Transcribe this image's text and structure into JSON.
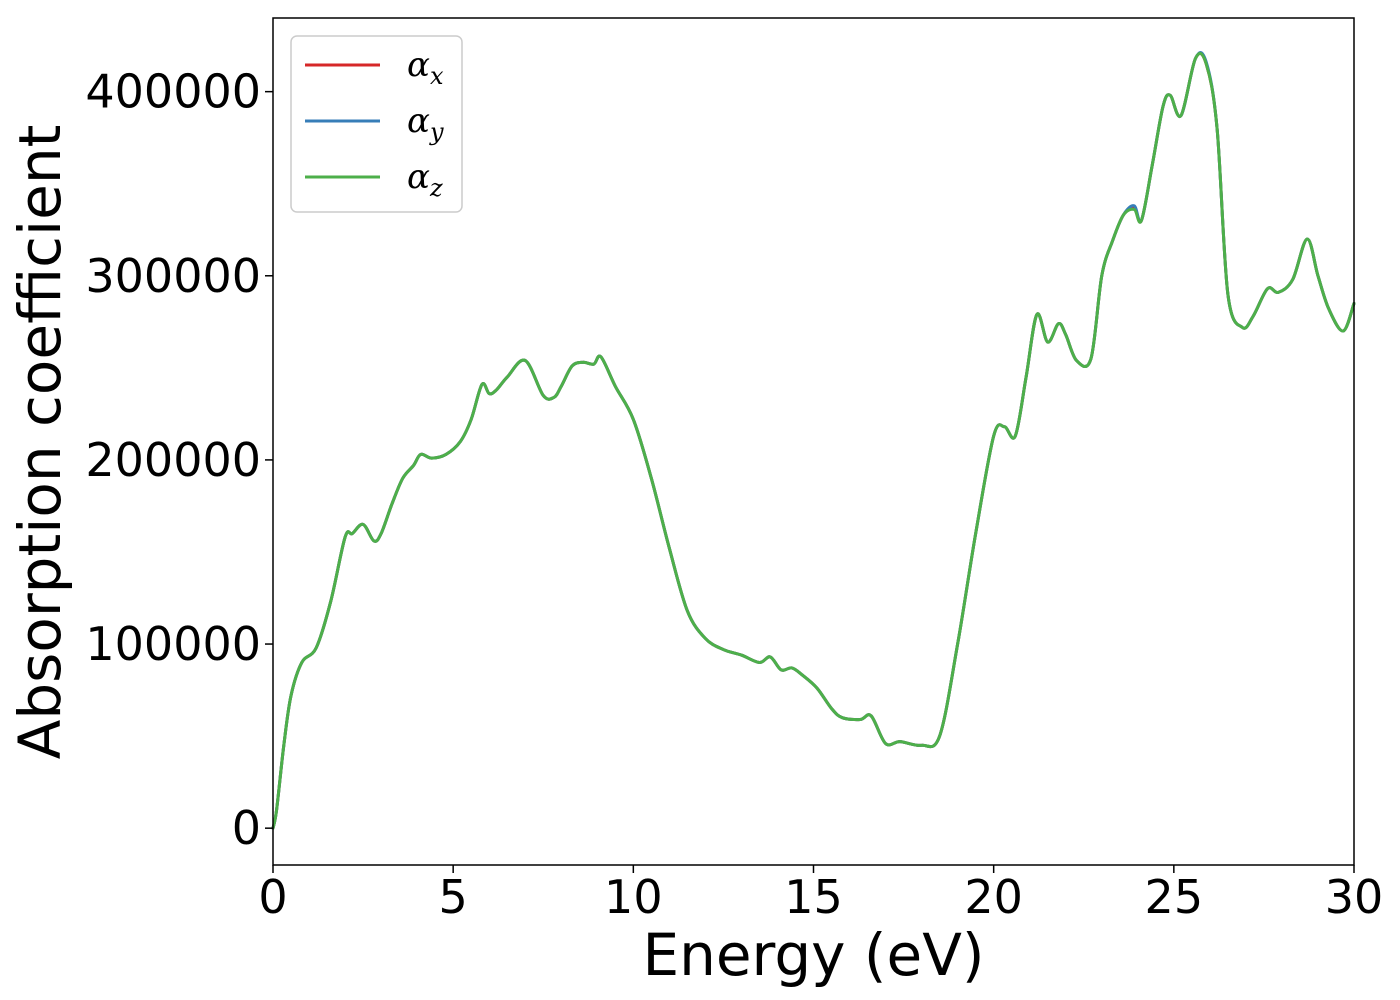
{
  "chart_data": {
    "type": "line",
    "title": "",
    "xlabel": "Energy (eV)",
    "ylabel": "Absorption coefficient",
    "xlim": [
      0,
      30
    ],
    "ylim": [
      -20000,
      440000
    ],
    "xticks": [
      0,
      5,
      10,
      15,
      20,
      25,
      30
    ],
    "xtick_labels": [
      "0",
      "5",
      "10",
      "15",
      "20",
      "25",
      "30"
    ],
    "yticks": [
      0,
      100000,
      200000,
      300000,
      400000
    ],
    "ytick_labels": [
      "0",
      "100000",
      "200000",
      "300000",
      "400000"
    ],
    "grid": false,
    "legend_position": "top-left",
    "series": [
      {
        "name": "αx",
        "symbol": "α",
        "subscript": "x",
        "color": "#d62728",
        "x": [
          0,
          0.1,
          0.3,
          0.5,
          0.8,
          1.2,
          1.6,
          2.0,
          2.2,
          2.5,
          2.8,
          3.0,
          3.3,
          3.6,
          3.9,
          4.1,
          4.4,
          4.8,
          5.2,
          5.5,
          5.8,
          6.0,
          6.2,
          6.5,
          7.0,
          7.5,
          7.8,
          8.0,
          8.3,
          8.6,
          8.9,
          9.1,
          9.5,
          10.0,
          10.5,
          11.0,
          11.5,
          12.0,
          12.5,
          13.0,
          13.5,
          13.8,
          14.1,
          14.4,
          14.7,
          15.1,
          15.5,
          15.8,
          16.3,
          16.6,
          17.0,
          17.4,
          18.0,
          18.5,
          19.0,
          19.5,
          20.0,
          20.3,
          20.6,
          20.9,
          21.2,
          21.5,
          21.8,
          22.0,
          22.3,
          22.7,
          23.0,
          23.3,
          23.6,
          23.9,
          24.1,
          24.4,
          24.7,
          24.9,
          25.2,
          25.6,
          25.9,
          26.2,
          26.5,
          26.9,
          27.2,
          27.6,
          27.9,
          28.3,
          28.7,
          29.0,
          29.3,
          29.7,
          30.0
        ],
        "y": [
          0,
          10000,
          45000,
          72000,
          90000,
          98000,
          123000,
          158000,
          160000,
          165000,
          156000,
          160000,
          176000,
          190000,
          197000,
          203000,
          201000,
          203000,
          210000,
          222000,
          241000,
          236000,
          238000,
          245000,
          254000,
          235000,
          234000,
          240000,
          251000,
          253000,
          252000,
          256000,
          240000,
          222000,
          190000,
          152000,
          118000,
          103000,
          97000,
          94000,
          90000,
          93000,
          86000,
          87000,
          83000,
          76000,
          65000,
          60000,
          59000,
          61000,
          46000,
          47000,
          45000,
          50000,
          100000,
          160000,
          213000,
          218000,
          213000,
          245000,
          279000,
          264000,
          274000,
          268000,
          254000,
          255000,
          300000,
          319000,
          333000,
          337000,
          330000,
          360000,
          392000,
          398000,
          387000,
          418000,
          415000,
          380000,
          290000,
          272000,
          278000,
          293000,
          291000,
          298000,
          320000,
          300000,
          282000,
          270000,
          285000
        ]
      },
      {
        "name": "αy",
        "symbol": "α",
        "subscript": "y",
        "color": "#377eb8",
        "x": [
          0,
          0.1,
          0.3,
          0.5,
          0.8,
          1.2,
          1.6,
          2.0,
          2.2,
          2.5,
          2.8,
          3.0,
          3.3,
          3.6,
          3.9,
          4.1,
          4.4,
          4.8,
          5.2,
          5.5,
          5.8,
          6.0,
          6.2,
          6.5,
          7.0,
          7.5,
          7.8,
          8.0,
          8.3,
          8.6,
          8.9,
          9.1,
          9.5,
          10.0,
          10.5,
          11.0,
          11.5,
          12.0,
          12.5,
          13.0,
          13.5,
          13.8,
          14.1,
          14.4,
          14.7,
          15.1,
          15.5,
          15.8,
          16.3,
          16.6,
          17.0,
          17.4,
          18.0,
          18.5,
          19.0,
          19.5,
          20.0,
          20.3,
          20.6,
          20.9,
          21.2,
          21.5,
          21.8,
          22.0,
          22.3,
          22.7,
          23.0,
          23.3,
          23.6,
          23.9,
          24.1,
          24.4,
          24.7,
          24.9,
          25.2,
          25.6,
          25.9,
          26.2,
          26.5,
          26.9,
          27.2,
          27.6,
          27.9,
          28.3,
          28.7,
          29.0,
          29.3,
          29.7,
          30.0
        ],
        "y": [
          0,
          10000,
          45000,
          72000,
          90000,
          98000,
          123000,
          158000,
          160000,
          165000,
          156000,
          160000,
          176000,
          190000,
          197000,
          203000,
          201000,
          203000,
          210000,
          222000,
          241000,
          236000,
          238000,
          245000,
          254000,
          235000,
          234000,
          240000,
          251000,
          253000,
          252000,
          256000,
          240000,
          222000,
          190000,
          152000,
          118000,
          103000,
          97000,
          94000,
          90000,
          93000,
          86000,
          87000,
          83000,
          76000,
          65000,
          60000,
          59000,
          61000,
          46000,
          47000,
          45000,
          50000,
          100000,
          160000,
          213000,
          218000,
          213000,
          245000,
          279000,
          264000,
          274000,
          268000,
          254000,
          255000,
          300000,
          319000,
          333000,
          338000,
          330000,
          360000,
          392000,
          398000,
          387000,
          418000,
          416000,
          380000,
          290000,
          272000,
          278000,
          293000,
          291000,
          298000,
          320000,
          300000,
          282000,
          270000,
          285000
        ]
      },
      {
        "name": "αz",
        "symbol": "α",
        "subscript": "z",
        "color": "#4daf4a",
        "x": [
          0,
          0.1,
          0.3,
          0.5,
          0.8,
          1.2,
          1.6,
          2.0,
          2.2,
          2.5,
          2.8,
          3.0,
          3.3,
          3.6,
          3.9,
          4.1,
          4.4,
          4.8,
          5.2,
          5.5,
          5.8,
          6.0,
          6.2,
          6.5,
          7.0,
          7.5,
          7.8,
          8.0,
          8.3,
          8.6,
          8.9,
          9.1,
          9.5,
          10.0,
          10.5,
          11.0,
          11.5,
          12.0,
          12.5,
          13.0,
          13.5,
          13.8,
          14.1,
          14.4,
          14.7,
          15.1,
          15.5,
          15.8,
          16.3,
          16.6,
          17.0,
          17.4,
          18.0,
          18.5,
          19.0,
          19.5,
          20.0,
          20.3,
          20.6,
          20.9,
          21.2,
          21.5,
          21.8,
          22.0,
          22.3,
          22.7,
          23.0,
          23.3,
          23.6,
          23.9,
          24.1,
          24.4,
          24.7,
          24.9,
          25.2,
          25.6,
          25.9,
          26.2,
          26.5,
          26.9,
          27.2,
          27.6,
          27.9,
          28.3,
          28.7,
          29.0,
          29.3,
          29.7,
          30.0
        ],
        "y": [
          0,
          10000,
          45000,
          72000,
          90000,
          98000,
          123000,
          158000,
          160000,
          165000,
          156000,
          160000,
          176000,
          190000,
          197000,
          203000,
          201000,
          203000,
          210000,
          222000,
          241000,
          236000,
          238000,
          245000,
          254000,
          235000,
          234000,
          240000,
          251000,
          253000,
          252000,
          256000,
          240000,
          222000,
          190000,
          152000,
          118000,
          103000,
          97000,
          94000,
          90000,
          93000,
          86000,
          87000,
          83000,
          76000,
          65000,
          60000,
          59000,
          61000,
          46000,
          47000,
          45000,
          50000,
          100000,
          160000,
          213000,
          218000,
          213000,
          245000,
          279000,
          264000,
          274000,
          268000,
          254000,
          255000,
          300000,
          319000,
          333000,
          336000,
          330000,
          360000,
          392000,
          398000,
          387000,
          418000,
          415000,
          380000,
          290000,
          272000,
          278000,
          293000,
          291000,
          298000,
          320000,
          300000,
          282000,
          270000,
          285000
        ]
      }
    ]
  }
}
